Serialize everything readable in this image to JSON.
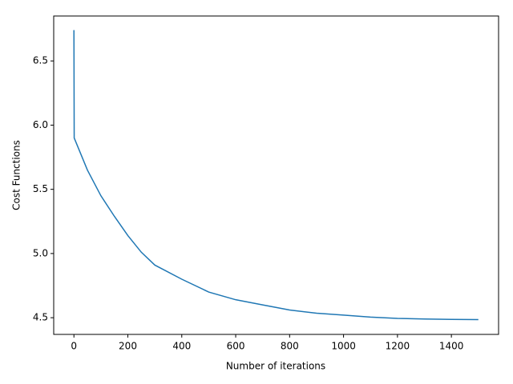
{
  "chart_data": {
    "type": "line",
    "x_label": "Number of iterations",
    "y_label": "Cost Functions",
    "series": [
      {
        "name": "cost",
        "color": "#1f77b4",
        "x": [
          0,
          1,
          50,
          100,
          150,
          200,
          250,
          300,
          400,
          500,
          600,
          700,
          800,
          900,
          1000,
          1100,
          1200,
          1300,
          1400,
          1500
        ],
        "values": [
          6.74,
          5.9,
          5.65,
          5.45,
          5.29,
          5.14,
          5.01,
          4.91,
          4.8,
          4.7,
          4.64,
          4.6,
          4.56,
          4.535,
          4.52,
          4.505,
          4.495,
          4.49,
          4.487,
          4.485
        ]
      }
    ],
    "xlim": [
      -75,
      1575
    ],
    "xticks": [
      0,
      200,
      400,
      600,
      800,
      1000,
      1200,
      1400
    ],
    "ylim": [
      4.37,
      6.85
    ],
    "yticks": [
      {
        "value": 4.5,
        "label": "4.5"
      },
      {
        "value": 5.0,
        "label": "5.0"
      },
      {
        "value": 5.5,
        "label": "5.5"
      },
      {
        "value": 6.0,
        "label": "6.0"
      },
      {
        "value": 6.5,
        "label": "6.5"
      }
    ],
    "grid": false
  }
}
